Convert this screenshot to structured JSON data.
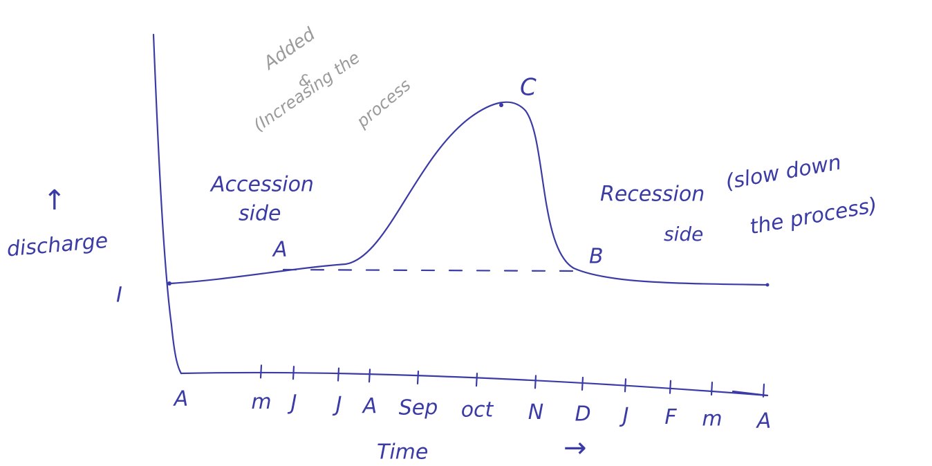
{
  "annotations": {
    "top_note": [
      "Added",
      "&",
      "(Increasing the",
      "process"
    ],
    "rising_side": [
      "Accession",
      "side"
    ],
    "falling_side": [
      "Recession",
      "side"
    ],
    "falling_note": [
      "(slow down",
      "the process)"
    ]
  },
  "points": {
    "rise_start": "A",
    "peak": "C",
    "fall_end": "B"
  },
  "axes": {
    "y_label": "discharge",
    "y_arrow": "↑",
    "y_marker": "I",
    "x_label": "Time",
    "x_arrow": "→",
    "x_ticks": [
      "A",
      "m",
      "J",
      "J",
      "A",
      "Sep",
      "oct",
      "N",
      "D",
      "J",
      "F",
      "m",
      "A"
    ]
  }
}
